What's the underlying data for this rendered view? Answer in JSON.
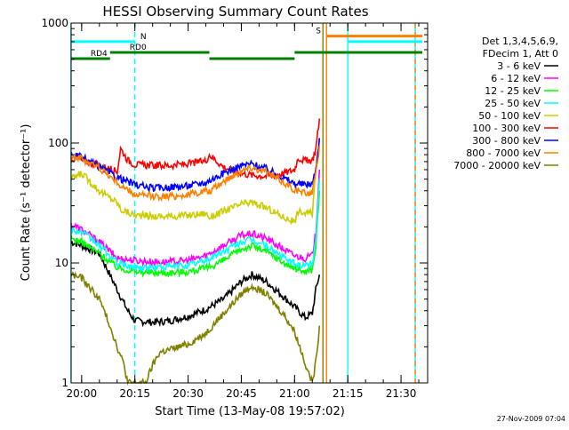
{
  "chart_data": {
    "type": "line",
    "title": "HESSI Observing Summary Count Rates",
    "xlabel": "Start Time (13-May-08 19:57:02)",
    "ylabel": "Count Rate (s⁻¹ detector⁻¹)",
    "yscale": "log",
    "ylim": [
      1,
      1000
    ],
    "y_ticks": [
      {
        "value": 1,
        "label": "1"
      },
      {
        "value": 10,
        "label": "10"
      },
      {
        "value": 100,
        "label": "100"
      },
      {
        "value": 1000,
        "label": "1000"
      }
    ],
    "xlim": [
      "19:57:02",
      "21:37:30"
    ],
    "x_ticks": [
      {
        "time": "20:00",
        "label": "20:00"
      },
      {
        "time": "20:15",
        "label": "20:15"
      },
      {
        "time": "20:30",
        "label": "20:30"
      },
      {
        "time": "20:45",
        "label": "20:45"
      },
      {
        "time": "21:00",
        "label": "21:00"
      },
      {
        "time": "21:15",
        "label": "21:15"
      },
      {
        "time": "21:30",
        "label": "21:30"
      }
    ],
    "legend": {
      "placement": "right",
      "header": [
        "Det 1,3,4,5,6,9,",
        "FDecim 1, Att 0"
      ]
    },
    "series": [
      {
        "name": "3 - 6 keV",
        "color": "#000000",
        "points": [
          [
            "19:57",
            "15"
          ],
          [
            "20:00",
            "14"
          ],
          [
            "20:05",
            "12"
          ],
          [
            "20:10",
            "6"
          ],
          [
            "20:13",
            "4"
          ],
          [
            "20:15",
            "3.3"
          ],
          [
            "20:20",
            "3.2"
          ],
          [
            "20:25",
            "3.3"
          ],
          [
            "20:30",
            "3.6"
          ],
          [
            "20:35",
            "4.1"
          ],
          [
            "20:40",
            "5"
          ],
          [
            "20:45",
            "7"
          ],
          [
            "20:48",
            "8"
          ],
          [
            "20:52",
            "7"
          ],
          [
            "20:57",
            "5.2"
          ],
          [
            "21:00",
            "4.3"
          ],
          [
            "21:03",
            "3.5"
          ],
          [
            "21:05",
            "3.8"
          ],
          [
            "21:06",
            "6"
          ],
          [
            "21:07",
            "8"
          ]
        ]
      },
      {
        "name": "6 - 12 keV",
        "color": "#ff00ff",
        "points": [
          [
            "19:57",
            "21"
          ],
          [
            "20:00",
            "19"
          ],
          [
            "20:05",
            "15"
          ],
          [
            "20:10",
            "11"
          ],
          [
            "20:15",
            "10.5"
          ],
          [
            "20:20",
            "10.2"
          ],
          [
            "20:25",
            "10.2"
          ],
          [
            "20:30",
            "10.5"
          ],
          [
            "20:35",
            "11.5"
          ],
          [
            "20:40",
            "14"
          ],
          [
            "20:45",
            "17"
          ],
          [
            "20:48",
            "17.5"
          ],
          [
            "20:52",
            "16"
          ],
          [
            "20:57",
            "13"
          ],
          [
            "21:00",
            "11.5"
          ],
          [
            "21:03",
            "11"
          ],
          [
            "21:05",
            "11.5"
          ],
          [
            "21:06",
            "18"
          ],
          [
            "21:07",
            "60"
          ]
        ]
      },
      {
        "name": "12 - 25 keV",
        "color": "#00ff00",
        "points": [
          [
            "19:57",
            "16"
          ],
          [
            "20:00",
            "15"
          ],
          [
            "20:05",
            "12"
          ],
          [
            "20:10",
            "9.2"
          ],
          [
            "20:15",
            "8.5"
          ],
          [
            "20:20",
            "8.3"
          ],
          [
            "20:25",
            "8.3"
          ],
          [
            "20:30",
            "8.5"
          ],
          [
            "20:35",
            "9"
          ],
          [
            "20:40",
            "10.5"
          ],
          [
            "20:45",
            "13"
          ],
          [
            "20:48",
            "14"
          ],
          [
            "20:52",
            "12.5"
          ],
          [
            "20:57",
            "10"
          ],
          [
            "21:00",
            "9"
          ],
          [
            "21:03",
            "8.5"
          ],
          [
            "21:05",
            "8.8"
          ],
          [
            "21:06",
            "14"
          ],
          [
            "21:07",
            "40"
          ]
        ]
      },
      {
        "name": "25 - 50 keV",
        "color": "#00ffff",
        "points": [
          [
            "19:57",
            "19"
          ],
          [
            "20:00",
            "18"
          ],
          [
            "20:05",
            "14"
          ],
          [
            "20:10",
            "10"
          ],
          [
            "20:15",
            "9.2"
          ],
          [
            "20:20",
            "9.2"
          ],
          [
            "20:25",
            "9.3"
          ],
          [
            "20:30",
            "9.6"
          ],
          [
            "20:35",
            "10.5"
          ],
          [
            "20:40",
            "12.5"
          ],
          [
            "20:45",
            "15"
          ],
          [
            "20:48",
            "15.5"
          ],
          [
            "20:52",
            "14"
          ],
          [
            "20:57",
            "11"
          ],
          [
            "21:00",
            "9.8"
          ],
          [
            "21:03",
            "9.5"
          ],
          [
            "21:05",
            "10"
          ],
          [
            "21:06",
            "16"
          ],
          [
            "21:07",
            "50"
          ]
        ]
      },
      {
        "name": "50 - 100 keV",
        "color": "#cccc00",
        "points": [
          [
            "19:57",
            "50"
          ],
          [
            "20:00",
            "56"
          ],
          [
            "20:05",
            "40"
          ],
          [
            "20:10",
            "32"
          ],
          [
            "20:11",
            "28"
          ],
          [
            "20:15",
            "25"
          ],
          [
            "20:20",
            "24.5"
          ],
          [
            "20:25",
            "24.5"
          ],
          [
            "20:30",
            "25"
          ],
          [
            "20:35",
            "26"
          ],
          [
            "20:36",
            "24"
          ],
          [
            "20:40",
            "27"
          ],
          [
            "20:45",
            "31"
          ],
          [
            "20:48",
            "32"
          ],
          [
            "20:52",
            "29"
          ],
          [
            "20:57",
            "24"
          ],
          [
            "21:00",
            "22"
          ],
          [
            "21:01",
            "27"
          ],
          [
            "21:03",
            "26"
          ],
          [
            "21:05",
            "26"
          ],
          [
            "21:06",
            "60"
          ],
          [
            "21:07",
            "110"
          ]
        ]
      },
      {
        "name": "100 - 300 keV",
        "color": "#ff0000",
        "points": [
          [
            "19:57",
            "75"
          ],
          [
            "20:00",
            "72"
          ],
          [
            "20:05",
            "65"
          ],
          [
            "20:10",
            "58"
          ],
          [
            "20:11",
            "90"
          ],
          [
            "20:13",
            "72"
          ],
          [
            "20:15",
            "66"
          ],
          [
            "20:20",
            "65"
          ],
          [
            "20:25",
            "65"
          ],
          [
            "20:30",
            "67"
          ],
          [
            "20:35",
            "71"
          ],
          [
            "20:36",
            "80"
          ],
          [
            "20:40",
            "63"
          ],
          [
            "20:45",
            "56"
          ],
          [
            "20:48",
            "54"
          ],
          [
            "20:52",
            "53"
          ],
          [
            "20:57",
            "56"
          ],
          [
            "21:00",
            "60"
          ],
          [
            "21:01",
            "75"
          ],
          [
            "21:03",
            "71"
          ],
          [
            "21:05",
            "72"
          ],
          [
            "21:06",
            "90"
          ],
          [
            "21:07",
            "160"
          ]
        ]
      },
      {
        "name": "300 - 800 keV",
        "color": "#0000ff",
        "points": [
          [
            "19:57",
            "80"
          ],
          [
            "20:00",
            "76"
          ],
          [
            "20:05",
            "63"
          ],
          [
            "20:10",
            "52"
          ],
          [
            "20:15",
            "45"
          ],
          [
            "20:20",
            "42"
          ],
          [
            "20:25",
            "43"
          ],
          [
            "20:30",
            "44"
          ],
          [
            "20:35",
            "47"
          ],
          [
            "20:40",
            "56"
          ],
          [
            "20:45",
            "65"
          ],
          [
            "20:48",
            "67"
          ],
          [
            "20:52",
            "61"
          ],
          [
            "20:57",
            "51"
          ],
          [
            "21:00",
            "46"
          ],
          [
            "21:03",
            "45"
          ],
          [
            "21:05",
            "46"
          ],
          [
            "21:06",
            "60"
          ],
          [
            "21:07",
            "110"
          ]
        ]
      },
      {
        "name": "800 - 7000 keV",
        "color": "#ff8000",
        "points": [
          [
            "19:57",
            "78"
          ],
          [
            "20:00",
            "74"
          ],
          [
            "20:05",
            "62"
          ],
          [
            "20:10",
            "47"
          ],
          [
            "20:11",
            "44"
          ],
          [
            "20:15",
            "37"
          ],
          [
            "20:20",
            "36"
          ],
          [
            "20:25",
            "36"
          ],
          [
            "20:30",
            "37"
          ],
          [
            "20:35",
            "40"
          ],
          [
            "20:36",
            "39"
          ],
          [
            "20:40",
            "48"
          ],
          [
            "20:45",
            "59"
          ],
          [
            "20:48",
            "63"
          ],
          [
            "20:52",
            "57"
          ],
          [
            "20:57",
            "47"
          ],
          [
            "21:00",
            "41"
          ],
          [
            "21:01",
            "40"
          ],
          [
            "21:03",
            "38"
          ],
          [
            "21:05",
            "39"
          ],
          [
            "21:06",
            "55"
          ],
          [
            "21:07",
            "95"
          ]
        ]
      },
      {
        "name": "7000 - 20000 keV",
        "color": "#808000",
        "points": [
          [
            "19:57",
            "8"
          ],
          [
            "20:00",
            "7.5"
          ],
          [
            "20:05",
            "5"
          ],
          [
            "20:08",
            "3"
          ],
          [
            "20:10",
            "2"
          ],
          [
            "20:12",
            "1.4"
          ],
          [
            "20:13",
            "1"
          ],
          [
            "20:18",
            "1"
          ],
          [
            "20:20",
            "1.4"
          ],
          [
            "20:22",
            "1.8"
          ],
          [
            "20:25",
            "1.9"
          ],
          [
            "20:30",
            "2.1"
          ],
          [
            "20:35",
            "2.6"
          ],
          [
            "20:40",
            "3.8"
          ],
          [
            "20:45",
            "5.5"
          ],
          [
            "20:48",
            "6.5"
          ],
          [
            "20:52",
            "5.5"
          ],
          [
            "20:57",
            "3.7"
          ],
          [
            "21:00",
            "2.7"
          ],
          [
            "21:02",
            "1.8"
          ],
          [
            "21:04",
            "1.2"
          ],
          [
            "21:05",
            "1"
          ],
          [
            "21:06",
            "1.5"
          ],
          [
            "21:07",
            "3"
          ]
        ]
      }
    ],
    "status_bars": [
      {
        "label": "N",
        "color": "#00ffff",
        "value": 700,
        "segments": [
          [
            "19:57",
            "20:15"
          ]
        ]
      },
      {
        "label": "",
        "color": "#00ffff",
        "value": 700,
        "segments": [
          [
            "21:15",
            "21:36"
          ]
        ]
      },
      {
        "label": "S",
        "color": "#ff8000",
        "value": 780,
        "segments": [
          [
            "21:09",
            "21:36"
          ]
        ]
      },
      {
        "label": "RD0",
        "color": "#008000",
        "value": 570,
        "segments": [
          [
            "20:08",
            "20:36"
          ],
          [
            "21:00",
            "21:36"
          ]
        ]
      },
      {
        "label": "RD4",
        "color": "#008000",
        "value": 505,
        "segments": [
          [
            "19:57",
            "20:08"
          ],
          [
            "20:36",
            "21:00"
          ]
        ]
      }
    ],
    "vertical_markers": [
      {
        "time": "20:15",
        "color": "#00ffff",
        "dashed": true
      },
      {
        "time": "21:09",
        "color": "#ff8000",
        "dashed": false
      },
      {
        "time": "21:08",
        "color": "#808000",
        "dashed": false
      },
      {
        "time": "21:15",
        "color": "#00ffff",
        "dashed": false
      },
      {
        "time": "21:34",
        "color": "#00ffff",
        "dashed": false
      },
      {
        "time": "21:34",
        "color": "#ff8000",
        "dashed": true
      },
      {
        "time": "19:57",
        "color": "#00ffff",
        "dashed": false
      }
    ]
  },
  "footer": {
    "timestamp": "27-Nov-2009 07:04"
  }
}
